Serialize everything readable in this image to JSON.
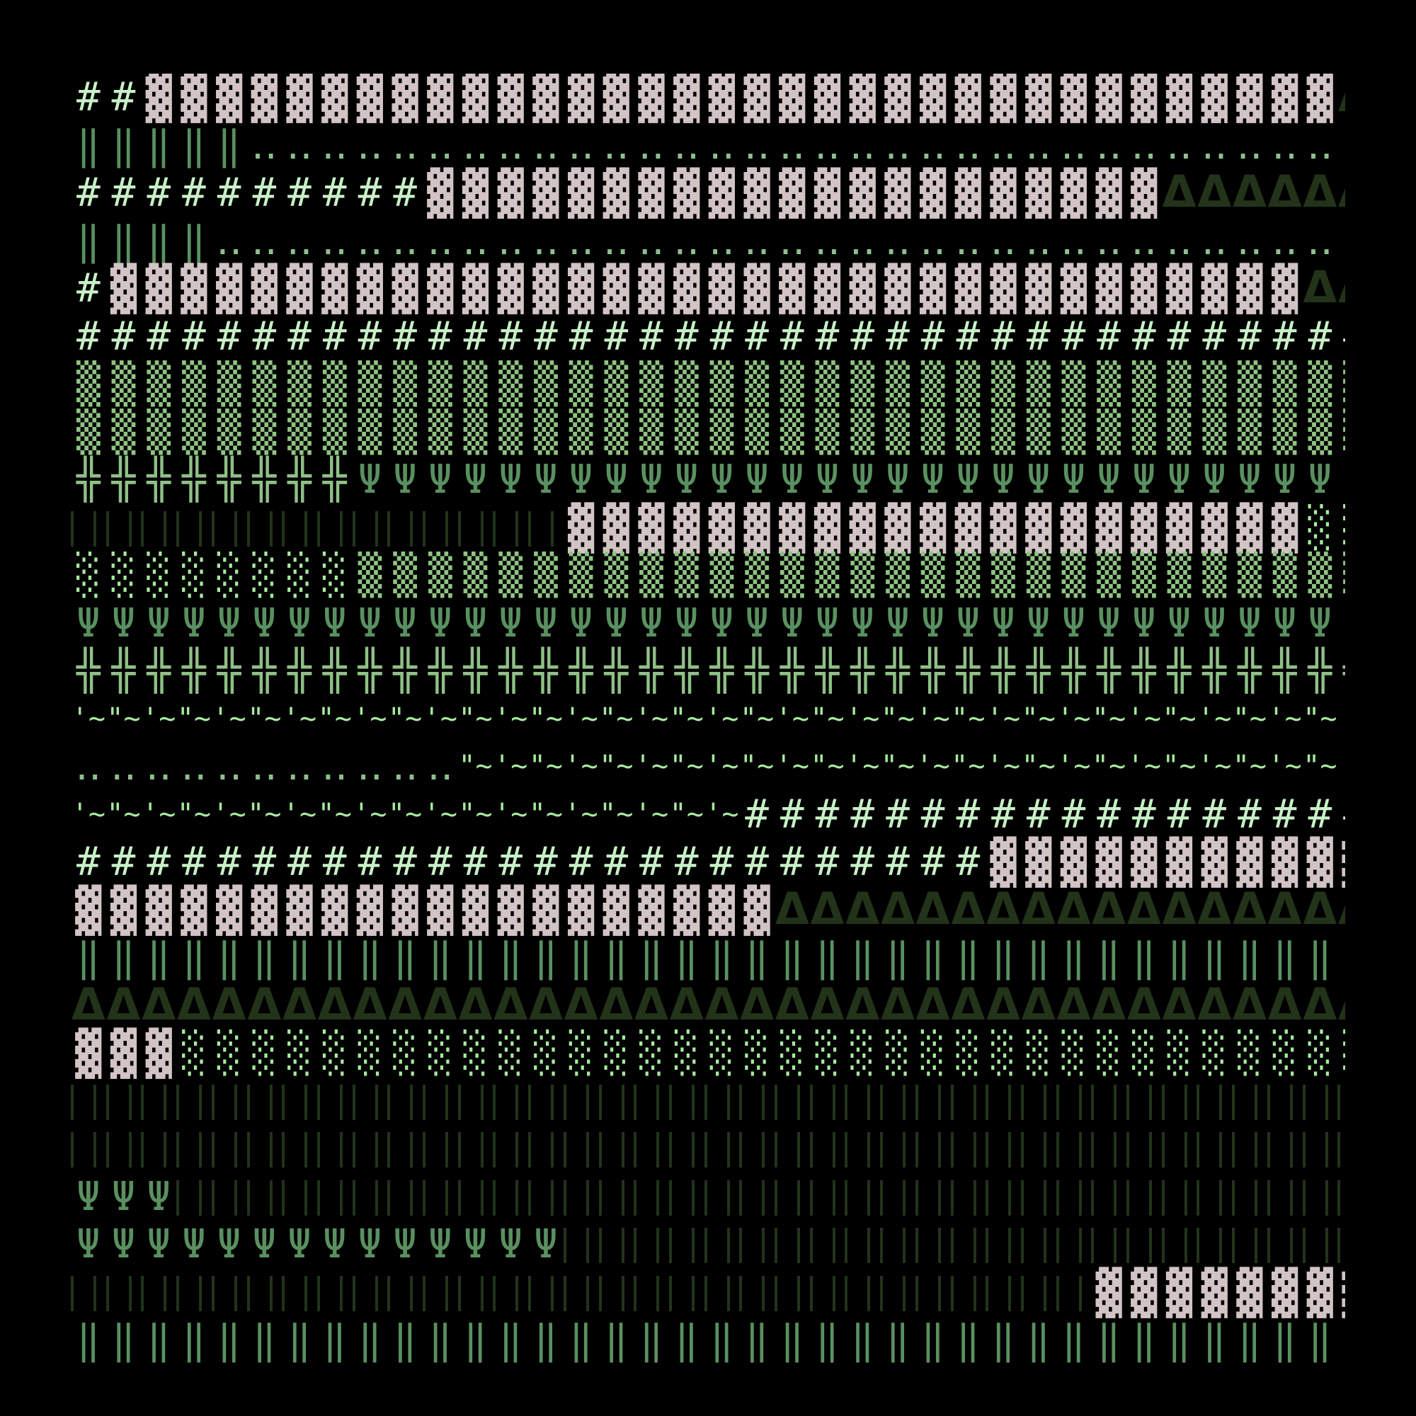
{
  "glyphs": {
    "hash": {
      "char": "#",
      "color": "#c8f0c8"
    },
    "dense": {
      "char": "▓",
      "color": "#d2c4c4"
    },
    "dblbar": {
      "char": "‖",
      "color": "#5a9060"
    },
    "dots": {
      "char": "‥",
      "color": "#8cc08c"
    },
    "delta": {
      "char": "Δ",
      "color": "#223319"
    },
    "medium": {
      "char": "▒",
      "color": "#8fc483"
    },
    "light": {
      "char": "░",
      "color": "#a8e8a0"
    },
    "cross": {
      "char": "╬",
      "color": "#90c088"
    },
    "psi": {
      "char": "Ψ",
      "color": "#5a9060"
    },
    "darkbars": {
      "char": "||",
      "color": "#22331a"
    },
    "wave1": {
      "char": "'~",
      "color": "#a8e8a0"
    },
    "wave2": {
      "char": "\"~",
      "color": "#a8e8a0"
    }
  },
  "rows": [
    [
      [
        "hash",
        2
      ],
      [
        "dense",
        34
      ],
      [
        "delta",
        1
      ]
    ],
    [
      [
        "dblbar",
        5
      ],
      [
        "dots",
        32
      ]
    ],
    [
      [
        "hash",
        10
      ],
      [
        "dense",
        21
      ],
      [
        "delta",
        6
      ]
    ],
    [
      [
        "dblbar",
        4
      ],
      [
        "dots",
        33
      ]
    ],
    [
      [
        "hash",
        1
      ],
      [
        "dense",
        34
      ],
      [
        "delta",
        2
      ]
    ],
    [
      [
        "hash",
        37
      ]
    ],
    [
      [
        "medium",
        37
      ]
    ],
    [
      [
        "medium",
        37
      ]
    ],
    [
      [
        "cross",
        8
      ],
      [
        "psi",
        29
      ]
    ],
    [
      [
        "darkbars",
        14
      ],
      [
        "dense",
        21
      ],
      [
        "light",
        2
      ]
    ],
    [
      [
        "light",
        8
      ],
      [
        "medium",
        29
      ]
    ],
    [
      [
        "psi",
        37
      ]
    ],
    [
      [
        "cross",
        37
      ]
    ],
    [
      [
        "wave",
        37
      ]
    ],
    [
      [
        "dots",
        11
      ],
      [
        "wave",
        26
      ]
    ],
    [
      [
        "wave",
        19
      ],
      [
        "hash",
        18
      ]
    ],
    [
      [
        "hash",
        26
      ],
      [
        "dense",
        11
      ]
    ],
    [
      [
        "dense",
        20
      ],
      [
        "delta",
        17
      ]
    ],
    [
      [
        "dblbar",
        36
      ]
    ],
    [
      [
        "delta",
        37
      ]
    ],
    [
      [
        "dense",
        3
      ],
      [
        "light",
        34
      ]
    ],
    [
      [
        "darkbars",
        37
      ]
    ],
    [
      [
        "darkbars",
        37
      ]
    ],
    [
      [
        "psi",
        3
      ],
      [
        "darkbars",
        34
      ]
    ],
    [
      [
        "psi",
        14
      ],
      [
        "darkbars",
        23
      ]
    ],
    [
      [
        "darkbars",
        29
      ],
      [
        "dense",
        8
      ]
    ],
    [
      [
        "dblbar",
        36
      ]
    ]
  ]
}
